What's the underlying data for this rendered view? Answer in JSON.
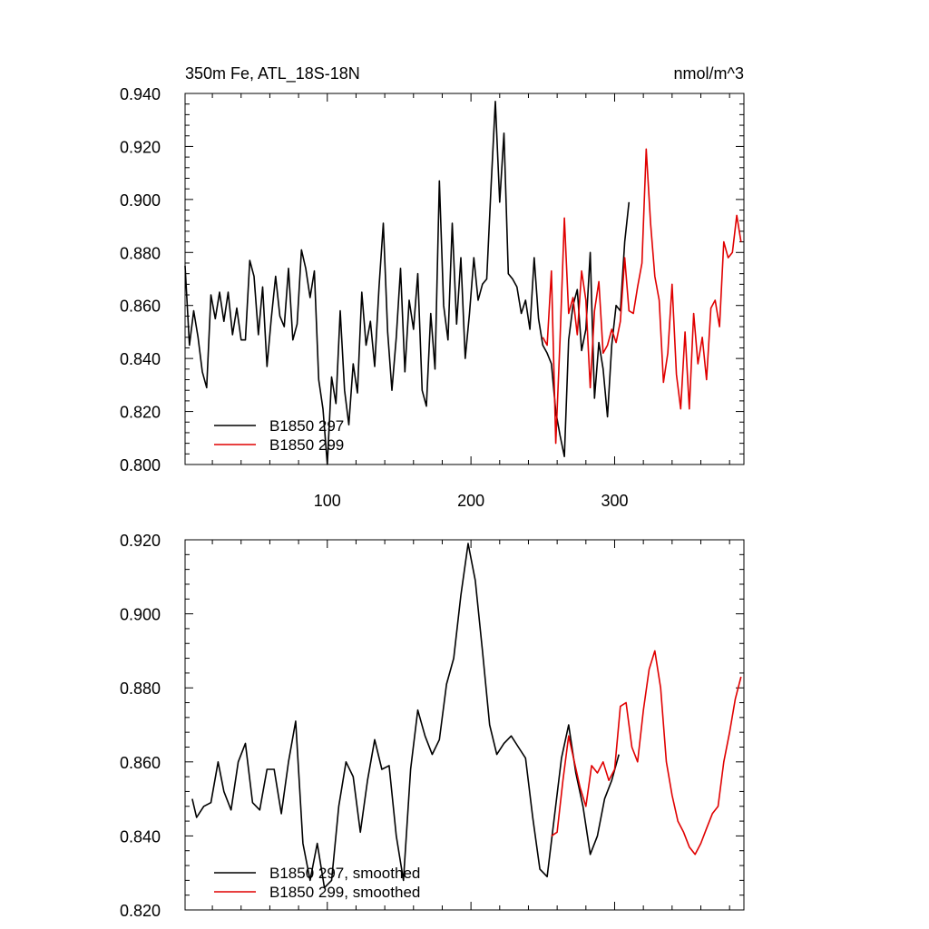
{
  "panels": [
    {
      "title_left": "350m Fe, ATL_18S-18N",
      "title_right": "nmol/m^3"
    },
    {
      "title_left": "",
      "title_right": ""
    }
  ],
  "chart_data": [
    {
      "type": "line",
      "title": "350m Fe, ATL_18S-18N",
      "units": "nmol/m^3",
      "xlim": [
        1,
        390
      ],
      "ylim": [
        0.8,
        0.94
      ],
      "x_ticks": [
        100,
        200,
        300
      ],
      "x_tick_labels": [
        "100",
        "200",
        "300"
      ],
      "y_ticks": [
        0.8,
        0.82,
        0.84,
        0.86,
        0.88,
        0.9,
        0.92,
        0.94
      ],
      "y_tick_labels": [
        "0.800",
        "0.820",
        "0.840",
        "0.860",
        "0.880",
        "0.900",
        "0.920",
        "0.940"
      ],
      "legend_position": "bottom-left",
      "series": [
        {
          "name": "B1850 297",
          "color": "#000000",
          "x": [
            1,
            4,
            7,
            10,
            13,
            16,
            19,
            22,
            25,
            28,
            31,
            34,
            37,
            40,
            43,
            46,
            49,
            52,
            55,
            58,
            61,
            64,
            67,
            70,
            73,
            76,
            79,
            82,
            85,
            88,
            91,
            94,
            97,
            100,
            103,
            106,
            109,
            112,
            115,
            118,
            121,
            124,
            127,
            130,
            133,
            136,
            139,
            142,
            145,
            148,
            151,
            154,
            157,
            160,
            163,
            166,
            169,
            172,
            175,
            178,
            181,
            184,
            187,
            190,
            193,
            196,
            199,
            202,
            205,
            208,
            211,
            214,
            217,
            220,
            223,
            226,
            229,
            232,
            235,
            238,
            241,
            244,
            247,
            250,
            253,
            256,
            259,
            262,
            265,
            268,
            271,
            274,
            277,
            280,
            283,
            286,
            289,
            292,
            295,
            298,
            301,
            304,
            307,
            310
          ],
          "values": [
            0.875,
            0.845,
            0.858,
            0.848,
            0.835,
            0.829,
            0.864,
            0.855,
            0.865,
            0.854,
            0.865,
            0.849,
            0.859,
            0.847,
            0.847,
            0.877,
            0.871,
            0.849,
            0.867,
            0.837,
            0.855,
            0.871,
            0.856,
            0.852,
            0.874,
            0.847,
            0.853,
            0.881,
            0.874,
            0.863,
            0.873,
            0.832,
            0.821,
            0.8,
            0.833,
            0.823,
            0.858,
            0.828,
            0.815,
            0.838,
            0.827,
            0.865,
            0.845,
            0.854,
            0.837,
            0.867,
            0.891,
            0.85,
            0.828,
            0.848,
            0.874,
            0.835,
            0.862,
            0.851,
            0.872,
            0.828,
            0.822,
            0.857,
            0.836,
            0.907,
            0.86,
            0.847,
            0.891,
            0.853,
            0.878,
            0.84,
            0.857,
            0.878,
            0.862,
            0.868,
            0.87,
            0.905,
            0.937,
            0.899,
            0.925,
            0.872,
            0.87,
            0.867,
            0.857,
            0.862,
            0.851,
            0.878,
            0.855,
            0.845,
            0.842,
            0.838,
            0.82,
            0.811,
            0.803,
            0.847,
            0.86,
            0.866,
            0.843,
            0.851,
            0.88,
            0.825,
            0.846,
            0.836,
            0.818,
            0.845,
            0.86,
            0.858,
            0.884,
            0.899
          ]
        },
        {
          "name": "B1850 299",
          "color": "#e00000",
          "x": [
            250,
            253,
            256,
            259,
            262,
            265,
            268,
            271,
            274,
            277,
            280,
            283,
            286,
            289,
            292,
            295,
            298,
            301,
            304,
            307,
            310,
            313,
            316,
            319,
            322,
            325,
            328,
            331,
            334,
            337,
            340,
            343,
            346,
            349,
            352,
            355,
            358,
            361,
            364,
            367,
            370,
            373,
            376,
            379,
            382,
            385,
            388
          ],
          "values": [
            0.848,
            0.845,
            0.873,
            0.808,
            0.847,
            0.893,
            0.857,
            0.863,
            0.849,
            0.873,
            0.862,
            0.829,
            0.858,
            0.869,
            0.842,
            0.845,
            0.851,
            0.846,
            0.854,
            0.878,
            0.858,
            0.857,
            0.867,
            0.876,
            0.919,
            0.891,
            0.871,
            0.862,
            0.831,
            0.842,
            0.868,
            0.834,
            0.821,
            0.85,
            0.821,
            0.857,
            0.838,
            0.848,
            0.832,
            0.859,
            0.862,
            0.852,
            0.884,
            0.878,
            0.88,
            0.894,
            0.884
          ]
        }
      ]
    },
    {
      "type": "line",
      "title": "",
      "xlim": [
        1,
        390
      ],
      "ylim": [
        0.82,
        0.92
      ],
      "x_ticks": [
        100,
        200,
        300
      ],
      "x_tick_labels": [],
      "y_ticks": [
        0.82,
        0.84,
        0.86,
        0.88,
        0.9,
        0.92
      ],
      "y_tick_labels": [
        "0.820",
        "0.840",
        "0.860",
        "0.880",
        "0.900",
        "0.920"
      ],
      "legend_position": "bottom-left",
      "series": [
        {
          "name": "B1850 297, smoothed",
          "color": "#000000",
          "x": [
            6,
            9,
            14,
            19,
            24,
            28,
            33,
            38,
            43,
            48,
            53,
            58,
            63,
            68,
            73,
            78,
            83,
            88,
            93,
            98,
            103,
            108,
            113,
            118,
            123,
            128,
            133,
            138,
            143,
            148,
            153,
            158,
            163,
            168,
            173,
            178,
            183,
            188,
            193,
            198,
            203,
            208,
            213,
            218,
            223,
            228,
            233,
            238,
            243,
            248,
            253,
            258,
            263,
            268,
            273,
            278,
            283,
            288,
            293,
            298,
            303
          ],
          "values": [
            0.85,
            0.845,
            0.848,
            0.849,
            0.86,
            0.852,
            0.847,
            0.86,
            0.865,
            0.849,
            0.847,
            0.858,
            0.858,
            0.846,
            0.86,
            0.871,
            0.838,
            0.828,
            0.838,
            0.826,
            0.828,
            0.848,
            0.86,
            0.856,
            0.841,
            0.855,
            0.866,
            0.858,
            0.859,
            0.84,
            0.828,
            0.858,
            0.874,
            0.867,
            0.862,
            0.866,
            0.881,
            0.888,
            0.905,
            0.919,
            0.909,
            0.89,
            0.87,
            0.862,
            0.865,
            0.867,
            0.864,
            0.861,
            0.845,
            0.831,
            0.829,
            0.845,
            0.861,
            0.87,
            0.857,
            0.848,
            0.835,
            0.84,
            0.85,
            0.855,
            0.862
          ]
        },
        {
          "name": "B1850 299, smoothed",
          "color": "#e00000",
          "x": [
            256,
            260,
            264,
            268,
            272,
            276,
            280,
            284,
            288,
            292,
            296,
            300,
            304,
            308,
            312,
            316,
            320,
            324,
            328,
            332,
            336,
            340,
            344,
            348,
            352,
            356,
            360,
            364,
            368,
            372,
            376,
            380,
            384,
            388
          ],
          "values": [
            0.84,
            0.841,
            0.855,
            0.867,
            0.86,
            0.853,
            0.848,
            0.859,
            0.857,
            0.86,
            0.855,
            0.858,
            0.875,
            0.876,
            0.864,
            0.86,
            0.874,
            0.885,
            0.89,
            0.88,
            0.86,
            0.851,
            0.844,
            0.841,
            0.837,
            0.835,
            0.838,
            0.842,
            0.846,
            0.848,
            0.86,
            0.868,
            0.877,
            0.883
          ]
        }
      ]
    }
  ]
}
